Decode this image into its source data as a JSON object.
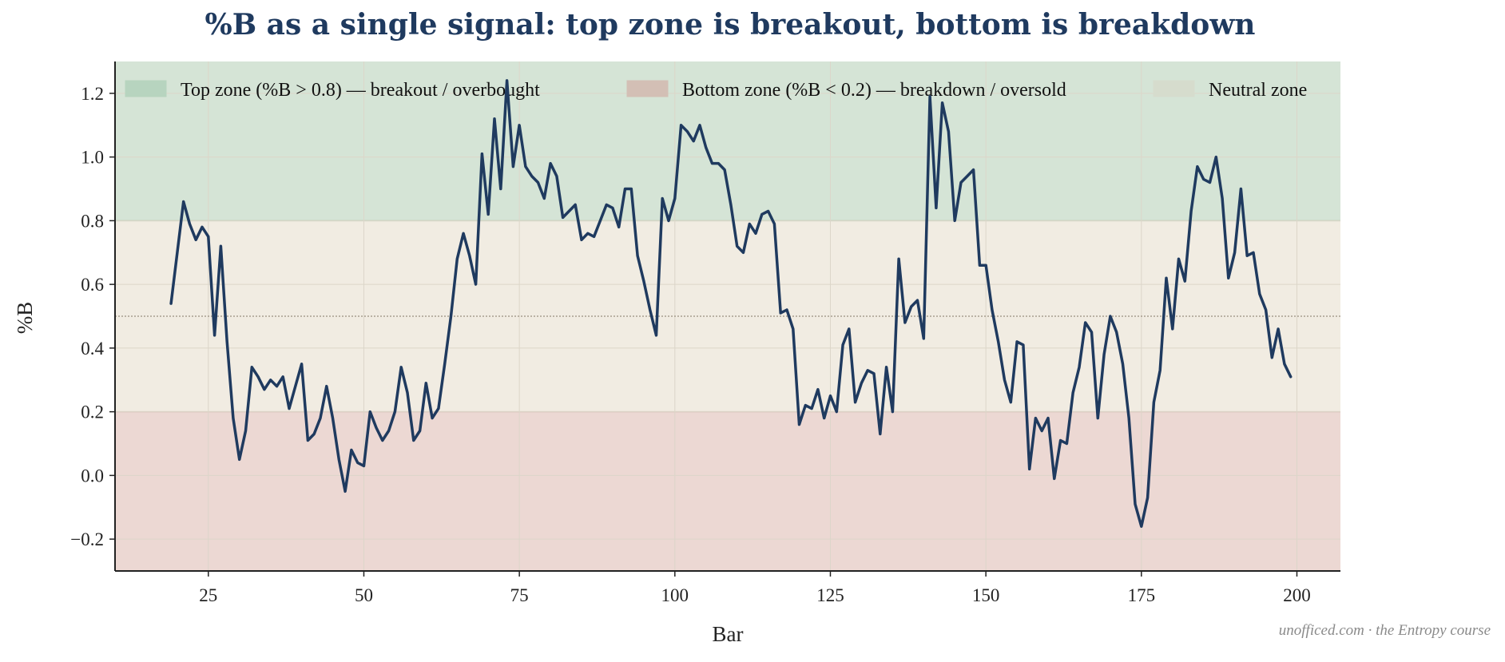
{
  "chart_data": {
    "type": "line",
    "title": "%B as a single signal: top zone is breakout, bottom is breakdown",
    "xlabel": "Bar",
    "ylabel": "%B",
    "xlim": [
      10,
      207
    ],
    "ylim": [
      -0.3,
      1.3
    ],
    "x_ticks": [
      25,
      50,
      75,
      100,
      125,
      150,
      175,
      200
    ],
    "y_ticks": [
      -0.2,
      0.0,
      0.2,
      0.4,
      0.6,
      0.8,
      1.0,
      1.2
    ],
    "y_tick_labels": [
      "−0.2",
      "0.0",
      "0.2",
      "0.4",
      "0.6",
      "0.8",
      "1.0",
      "1.2"
    ],
    "grid": true,
    "legend_position": "top",
    "zones": [
      {
        "name": "Top zone (%B > 0.8) — breakout / overbought",
        "y0": 0.8,
        "y1": 1.3,
        "color": "#d5e4d6"
      },
      {
        "name": "Bottom zone (%B < 0.2) — breakdown / oversold",
        "y0": -0.3,
        "y1": 0.2,
        "color": "#ecd8d3"
      },
      {
        "name": "Neutral zone",
        "y0": 0.2,
        "y1": 0.8,
        "color": "#f1ece2"
      }
    ],
    "legend_swatches": [
      "#b7d4bf",
      "#d3bfb5",
      "#d6dccd"
    ],
    "midline": 0.5,
    "line_color": "#1f3a5f",
    "series": [
      {
        "x": [
          19,
          20,
          21,
          22,
          23,
          24,
          25,
          26,
          27,
          28,
          29,
          30,
          31,
          32,
          33,
          34,
          35,
          36,
          37,
          38,
          39,
          40,
          41,
          42,
          43,
          44,
          45,
          46,
          47,
          48,
          49,
          50,
          51,
          52,
          53,
          54,
          55,
          56,
          57,
          58,
          59,
          60,
          61,
          62,
          63,
          64,
          65,
          66,
          67,
          68,
          69,
          70,
          71,
          72,
          73,
          74,
          75,
          76,
          77,
          78,
          79,
          80,
          81,
          82,
          83,
          84,
          85,
          86,
          87,
          88,
          89,
          90,
          91,
          92,
          93,
          94,
          95,
          96,
          97,
          98,
          99,
          100,
          101,
          102,
          103,
          104,
          105,
          106,
          107,
          108,
          109,
          110,
          111,
          112,
          113,
          114,
          115,
          116,
          117,
          118,
          119,
          120,
          121,
          122,
          123,
          124,
          125,
          126,
          127,
          128,
          129,
          130,
          131,
          132,
          133,
          134,
          135,
          136,
          137,
          138,
          139,
          140,
          141,
          142,
          143,
          144,
          145,
          146,
          147,
          148,
          149,
          150,
          151,
          152,
          153,
          154,
          155,
          156,
          157,
          158,
          159,
          160,
          161,
          162,
          163,
          164,
          165,
          166,
          167,
          168,
          169,
          170,
          171,
          172,
          173,
          174,
          175,
          176,
          177,
          178,
          179,
          180,
          181,
          182,
          183,
          184,
          185,
          186,
          187,
          188,
          189,
          190,
          191,
          192,
          193,
          194,
          195,
          196,
          197,
          198,
          199
        ],
        "values": [
          0.54,
          0.7,
          0.86,
          0.79,
          0.74,
          0.78,
          0.75,
          0.44,
          0.72,
          0.42,
          0.18,
          0.05,
          0.14,
          0.34,
          0.31,
          0.27,
          0.3,
          0.28,
          0.31,
          0.21,
          0.28,
          0.35,
          0.11,
          0.13,
          0.18,
          0.28,
          0.18,
          0.05,
          -0.05,
          0.08,
          0.04,
          0.03,
          0.2,
          0.15,
          0.11,
          0.14,
          0.2,
          0.34,
          0.26,
          0.11,
          0.14,
          0.29,
          0.18,
          0.21,
          0.35,
          0.5,
          0.68,
          0.76,
          0.69,
          0.6,
          1.01,
          0.82,
          1.12,
          0.9,
          1.24,
          0.97,
          1.1,
          0.97,
          0.94,
          0.92,
          0.87,
          0.98,
          0.94,
          0.81,
          0.83,
          0.85,
          0.74,
          0.76,
          0.75,
          0.8,
          0.85,
          0.84,
          0.78,
          0.9,
          0.9,
          0.69,
          0.61,
          0.52,
          0.44,
          0.87,
          0.8,
          0.87,
          1.1,
          1.08,
          1.05,
          1.1,
          1.03,
          0.98,
          0.98,
          0.96,
          0.85,
          0.72,
          0.7,
          0.79,
          0.76,
          0.82,
          0.83,
          0.79,
          0.51,
          0.52,
          0.46,
          0.16,
          0.22,
          0.21,
          0.27,
          0.18,
          0.25,
          0.2,
          0.41,
          0.46,
          0.23,
          0.29,
          0.33,
          0.32,
          0.13,
          0.34,
          0.2,
          0.68,
          0.48,
          0.53,
          0.55,
          0.43,
          1.19,
          0.84,
          1.17,
          1.08,
          0.8,
          0.92,
          0.94,
          0.96,
          0.66,
          0.66,
          0.52,
          0.42,
          0.3,
          0.23,
          0.42,
          0.41,
          0.02,
          0.18,
          0.14,
          0.18,
          -0.01,
          0.11,
          0.1,
          0.26,
          0.34,
          0.48,
          0.45,
          0.18,
          0.38,
          0.5,
          0.45,
          0.35,
          0.18,
          -0.09,
          -0.16,
          -0.07,
          0.23,
          0.33,
          0.62,
          0.46,
          0.68,
          0.61,
          0.83,
          0.97,
          0.93,
          0.92,
          1.0,
          0.87,
          0.62,
          0.7,
          0.9,
          0.69,
          0.7,
          0.57,
          0.52,
          0.37,
          0.46,
          0.35,
          0.31
        ]
      }
    ]
  },
  "footer": {
    "credit": "unofficed.com · the Entropy course"
  }
}
